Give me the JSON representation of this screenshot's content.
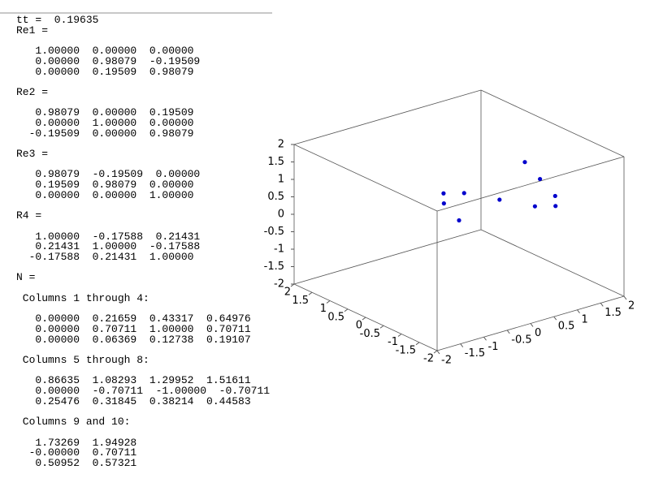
{
  "console": {
    "blocks": [
      {
        "lines": [
          "tt =  0.19635",
          "Re1 ="
        ]
      },
      {
        "lines": [
          "   1.00000  0.00000  0.00000",
          "   0.00000  0.98079  -0.19509",
          "   0.00000  0.19509  0.98079"
        ]
      },
      {
        "lines": [
          "Re2 ="
        ]
      },
      {
        "lines": [
          "   0.98079  0.00000  0.19509",
          "   0.00000  1.00000  0.00000",
          "  -0.19509  0.00000  0.98079"
        ]
      },
      {
        "lines": [
          "Re3 ="
        ]
      },
      {
        "lines": [
          "   0.98079  -0.19509  0.00000",
          "   0.19509  0.98079  0.00000",
          "   0.00000  0.00000  1.00000"
        ]
      },
      {
        "lines": [
          "R4 ="
        ]
      },
      {
        "lines": [
          "   1.00000  -0.17588  0.21431",
          "   0.21431  1.00000  -0.17588",
          "  -0.17588  0.21431  1.00000"
        ]
      },
      {
        "lines": [
          "N ="
        ]
      },
      {
        "lines": [
          " Columns 1 through 4:"
        ]
      },
      {
        "lines": [
          "   0.00000  0.21659  0.43317  0.64976",
          "   0.00000  0.70711  1.00000  0.70711",
          "   0.00000  0.06369  0.12738  0.19107"
        ]
      },
      {
        "lines": [
          " Columns 5 through 8:"
        ]
      },
      {
        "lines": [
          "   0.86635  1.08293  1.29952  1.51611",
          "   0.00000  -0.70711  -1.00000  -0.70711",
          "   0.25476  0.31845  0.38214  0.44583"
        ]
      },
      {
        "lines": [
          " Columns 9 and 10:"
        ]
      },
      {
        "lines": [
          "   1.73269  1.94928",
          "  -0.00000  0.70711",
          "   0.50952  0.57321"
        ]
      }
    ]
  },
  "chart_data": {
    "type": "scatter3d",
    "x": [
      0,
      0.21659,
      0.43317,
      0.64976,
      0.86635,
      1.08293,
      1.29952,
      1.51611,
      1.73269,
      1.94928
    ],
    "y": [
      0,
      0.70711,
      1,
      0.70711,
      0,
      -0.70711,
      -1,
      -0.70711,
      0,
      0.70711
    ],
    "z": [
      0,
      0.06369,
      0.12738,
      0.19107,
      0.25476,
      0.31845,
      0.38214,
      0.44583,
      0.50952,
      0.57321
    ],
    "color": "#0000cc",
    "xlim": [
      -2,
      2
    ],
    "ylim": [
      -2,
      2
    ],
    "zlim": [
      -2,
      2
    ],
    "xticks": [
      -2,
      -1.5,
      -1,
      -0.5,
      0,
      0.5,
      1,
      1.5,
      2
    ],
    "yticks": [
      -2,
      -1.5,
      -1,
      -0.5,
      0,
      0.5,
      1,
      1.5,
      2
    ],
    "zticks": [
      -2,
      -1.5,
      -1,
      -0.5,
      0,
      0.5,
      1,
      1.5,
      2
    ]
  }
}
